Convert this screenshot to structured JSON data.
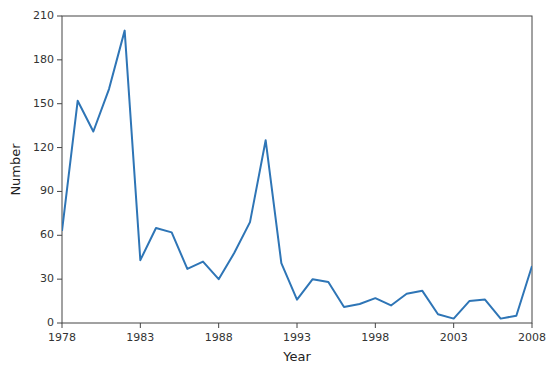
{
  "chart_data": {
    "type": "line",
    "x": [
      1978,
      1979,
      1980,
      1981,
      1982,
      1983,
      1984,
      1985,
      1986,
      1987,
      1988,
      1989,
      1990,
      1991,
      1992,
      1993,
      1994,
      1995,
      1996,
      1997,
      1998,
      1999,
      2000,
      2001,
      2002,
      2003,
      2004,
      2005,
      2006,
      2007,
      2008
    ],
    "values": [
      63,
      152,
      131,
      160,
      200,
      43,
      65,
      62,
      37,
      42,
      30,
      48,
      69,
      125,
      41,
      16,
      30,
      28,
      11,
      13,
      17,
      12,
      20,
      22,
      6,
      3,
      15,
      16,
      3,
      5,
      39
    ],
    "color": "#2e75b6",
    "xlabel": "Year",
    "ylabel": "Number",
    "xlim": [
      1978,
      2008
    ],
    "ylim": [
      0,
      210
    ],
    "xticks": [
      1978,
      1983,
      1988,
      1993,
      1998,
      2003,
      2008
    ],
    "yticks": [
      0,
      30,
      60,
      90,
      120,
      150,
      180,
      210
    ],
    "grid": false
  }
}
